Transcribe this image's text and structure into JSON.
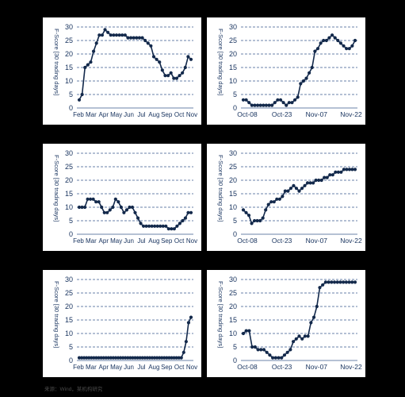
{
  "colors": {
    "line": "#13294b",
    "grid": "#3a5a8c",
    "axis_text": "#1a3560",
    "background": "#000000",
    "panel": "#ffffff"
  },
  "source": "来源：Wind，某机构研究",
  "chart_data": [
    {
      "type": "line",
      "ylabel": "F-Score [30 trading days]",
      "ylim": [
        0,
        30
      ],
      "yticks": [
        0,
        5,
        10,
        15,
        20,
        25,
        30
      ],
      "xticks": [
        "Feb",
        "Mar",
        "Apr",
        "May",
        "Jun",
        "Jul",
        "Aug",
        "Sep",
        "Oct",
        "Nov"
      ],
      "grid": "horizontal dashed",
      "series": [
        {
          "values": [
            3,
            5,
            15,
            16,
            17,
            21,
            24,
            27,
            27,
            29,
            28,
            27,
            27,
            27,
            27,
            27,
            27,
            26,
            26,
            26,
            26,
            26,
            26,
            25,
            24,
            23,
            19,
            18,
            17,
            14,
            12,
            12,
            13,
            11,
            11,
            12,
            13,
            15,
            19,
            18
          ]
        }
      ]
    },
    {
      "type": "line",
      "ylabel": "F-Score [30 trading days]",
      "ylim": [
        0,
        30
      ],
      "yticks": [
        0,
        5,
        10,
        15,
        20,
        25,
        30
      ],
      "xticks": [
        "Oct-08",
        "Oct-23",
        "Nov-07",
        "Nov-22"
      ],
      "grid": "horizontal dashed",
      "series": [
        {
          "values": [
            3,
            3,
            2,
            1,
            1,
            1,
            1,
            1,
            1,
            1,
            1,
            2,
            3,
            3,
            2,
            1,
            2,
            2,
            3,
            4,
            9,
            10,
            11,
            13,
            15,
            21,
            22,
            24,
            25,
            25,
            26,
            27,
            26,
            25,
            24,
            23,
            22,
            22,
            23,
            25
          ]
        }
      ]
    },
    {
      "type": "line",
      "ylabel": "F-Score [30 trading days]",
      "ylim": [
        0,
        30
      ],
      "yticks": [
        0,
        5,
        10,
        15,
        20,
        25,
        30
      ],
      "xticks": [
        "Feb",
        "Mar",
        "Apr",
        "May",
        "Jun",
        "Jul",
        "Aug",
        "Sep",
        "Oct",
        "Nov"
      ],
      "grid": "horizontal dashed",
      "series": [
        {
          "values": [
            10,
            10,
            10,
            13,
            13,
            13,
            12,
            12,
            10,
            8,
            8,
            9,
            10,
            13,
            12,
            10,
            8,
            9,
            10,
            10,
            8,
            6,
            4,
            3,
            3,
            3,
            3,
            3,
            3,
            3,
            3,
            3,
            2,
            2,
            2,
            3,
            4,
            5,
            6,
            8,
            8
          ]
        }
      ]
    },
    {
      "type": "line",
      "ylabel": "F-Score [30 trading days]",
      "ylim": [
        0,
        25
      ],
      "yticks": [
        0,
        5,
        10,
        15,
        20,
        25,
        30
      ],
      "xticks": [
        "Oct-08",
        "Oct-23",
        "Nov-07",
        "Nov-22"
      ],
      "grid": "horizontal dashed",
      "series": [
        {
          "values": [
            9,
            8,
            7,
            4,
            5,
            5,
            5,
            6,
            9,
            11,
            12,
            12,
            13,
            13,
            14,
            16,
            16,
            17,
            18,
            17,
            16,
            17,
            18,
            19,
            19,
            19,
            20,
            20,
            20,
            21,
            21,
            22,
            22,
            23,
            23,
            23,
            24,
            24,
            24,
            24,
            24
          ]
        }
      ]
    },
    {
      "type": "line",
      "ylabel": "F-Score [30 trading days]",
      "ylim": [
        0,
        30
      ],
      "yticks": [
        0,
        5,
        10,
        15,
        20,
        25,
        30
      ],
      "xticks": [
        "Feb",
        "Mar",
        "Apr",
        "May",
        "Jun",
        "Jul",
        "Aug",
        "Sep",
        "Oct",
        "Nov"
      ],
      "grid": "horizontal dashed",
      "series": [
        {
          "values": [
            1,
            1,
            1,
            1,
            1,
            1,
            1,
            1,
            1,
            1,
            1,
            1,
            1,
            1,
            1,
            1,
            1,
            1,
            1,
            1,
            1,
            1,
            1,
            1,
            1,
            1,
            1,
            1,
            1,
            1,
            1,
            1,
            1,
            1,
            1,
            1,
            1,
            1,
            1,
            1,
            1,
            1,
            1,
            3,
            7,
            14,
            16
          ]
        }
      ]
    },
    {
      "type": "line",
      "ylabel": "F-Score [30 trading days]",
      "ylim": [
        0,
        30
      ],
      "yticks": [
        0,
        5,
        10,
        15,
        20,
        25,
        30
      ],
      "xticks": [
        "Oct-08",
        "Oct-23",
        "Nov-07",
        "Nov-22"
      ],
      "grid": "horizontal dashed",
      "series": [
        {
          "values": [
            10,
            11,
            11,
            5,
            5,
            4,
            4,
            4,
            3,
            2,
            1,
            1,
            1,
            1,
            2,
            3,
            4,
            7,
            8,
            9,
            8,
            9,
            9,
            14,
            16,
            20,
            27,
            28,
            29,
            29,
            29,
            29,
            29,
            29,
            29,
            29,
            29,
            29,
            29
          ]
        }
      ]
    }
  ]
}
